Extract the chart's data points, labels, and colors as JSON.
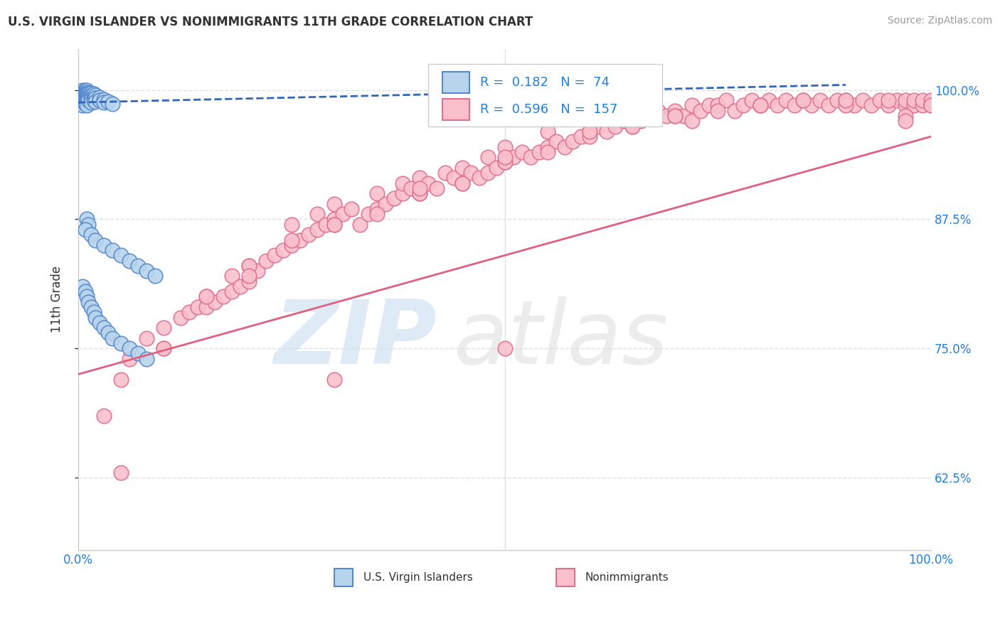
{
  "title": "U.S. VIRGIN ISLANDER VS NONIMMIGRANTS 11TH GRADE CORRELATION CHART",
  "source_text": "Source: ZipAtlas.com",
  "ylabel": "11th Grade",
  "xlim": [
    0.0,
    1.0
  ],
  "ylim": [
    0.555,
    1.04
  ],
  "yticks": [
    0.625,
    0.75,
    0.875,
    1.0
  ],
  "ytick_labels": [
    "62.5%",
    "75.0%",
    "87.5%",
    "100.0%"
  ],
  "xticks": [
    0.0,
    0.25,
    0.5,
    0.75,
    1.0
  ],
  "xtick_labels": [
    "0.0%",
    "",
    "",
    "",
    "100.0%"
  ],
  "blue_color": "#b8d4ec",
  "blue_edge_color": "#5588cc",
  "blue_line_color": "#3366bb",
  "pink_color": "#f9c0cc",
  "pink_edge_color": "#e07090",
  "pink_line_color": "#e06080",
  "legend_R1": "0.182",
  "legend_N1": "74",
  "legend_R2": "0.596",
  "legend_N2": "157",
  "title_color": "#333333",
  "axis_color": "#2080e0",
  "grid_color": "#e0e0e0",
  "blue_scatter_x": [
    0.005,
    0.005,
    0.005,
    0.005,
    0.005,
    0.005,
    0.005,
    0.005,
    0.008,
    0.008,
    0.008,
    0.008,
    0.008,
    0.008,
    0.008,
    0.01,
    0.01,
    0.01,
    0.01,
    0.01,
    0.01,
    0.01,
    0.01,
    0.012,
    0.012,
    0.012,
    0.012,
    0.012,
    0.015,
    0.015,
    0.015,
    0.015,
    0.015,
    0.018,
    0.018,
    0.018,
    0.02,
    0.02,
    0.02,
    0.025,
    0.025,
    0.03,
    0.03,
    0.035,
    0.04,
    0.01,
    0.012,
    0.008,
    0.015,
    0.02,
    0.03,
    0.04,
    0.05,
    0.06,
    0.07,
    0.08,
    0.09,
    0.005,
    0.008,
    0.01,
    0.012,
    0.015,
    0.018,
    0.02,
    0.025,
    0.03,
    0.035,
    0.04,
    0.05,
    0.06,
    0.07,
    0.08
  ],
  "blue_scatter_y": [
    1.0,
    0.998,
    0.996,
    0.994,
    0.992,
    0.99,
    0.988,
    0.985,
    1.0,
    0.998,
    0.996,
    0.994,
    0.992,
    0.99,
    0.987,
    1.0,
    0.998,
    0.996,
    0.994,
    0.992,
    0.99,
    0.988,
    0.985,
    0.998,
    0.996,
    0.994,
    0.992,
    0.99,
    0.997,
    0.995,
    0.993,
    0.991,
    0.988,
    0.996,
    0.993,
    0.99,
    0.995,
    0.992,
    0.989,
    0.993,
    0.99,
    0.991,
    0.988,
    0.989,
    0.987,
    0.875,
    0.87,
    0.865,
    0.86,
    0.855,
    0.85,
    0.845,
    0.84,
    0.835,
    0.83,
    0.825,
    0.82,
    0.81,
    0.805,
    0.8,
    0.795,
    0.79,
    0.785,
    0.78,
    0.775,
    0.77,
    0.765,
    0.76,
    0.755,
    0.75,
    0.745,
    0.74
  ],
  "pink_scatter_x": [
    0.03,
    0.05,
    0.06,
    0.08,
    0.1,
    0.1,
    0.12,
    0.13,
    0.14,
    0.15,
    0.15,
    0.16,
    0.17,
    0.18,
    0.18,
    0.19,
    0.2,
    0.2,
    0.21,
    0.22,
    0.23,
    0.24,
    0.25,
    0.25,
    0.26,
    0.27,
    0.28,
    0.28,
    0.29,
    0.3,
    0.3,
    0.31,
    0.32,
    0.33,
    0.34,
    0.35,
    0.35,
    0.36,
    0.37,
    0.38,
    0.38,
    0.39,
    0.4,
    0.4,
    0.41,
    0.42,
    0.43,
    0.44,
    0.45,
    0.45,
    0.46,
    0.47,
    0.48,
    0.48,
    0.49,
    0.5,
    0.5,
    0.51,
    0.52,
    0.53,
    0.54,
    0.55,
    0.55,
    0.56,
    0.57,
    0.58,
    0.59,
    0.6,
    0.6,
    0.61,
    0.62,
    0.63,
    0.64,
    0.65,
    0.65,
    0.66,
    0.67,
    0.68,
    0.69,
    0.7,
    0.71,
    0.72,
    0.72,
    0.73,
    0.74,
    0.75,
    0.76,
    0.77,
    0.78,
    0.79,
    0.8,
    0.81,
    0.82,
    0.83,
    0.84,
    0.85,
    0.86,
    0.87,
    0.88,
    0.89,
    0.9,
    0.91,
    0.92,
    0.93,
    0.94,
    0.95,
    0.96,
    0.97,
    0.97,
    0.98,
    0.98,
    0.99,
    0.99,
    1.0,
    1.0,
    1.0,
    0.97,
    0.97,
    0.1,
    0.15,
    0.2,
    0.25,
    0.3,
    0.35,
    0.4,
    0.45,
    0.5,
    0.55,
    0.6,
    0.65,
    0.7,
    0.75,
    0.8,
    0.85,
    0.9,
    0.95,
    0.2,
    0.3,
    0.4,
    0.5,
    0.6,
    0.7,
    0.8,
    0.9,
    0.05,
    0.5,
    0.3
  ],
  "pink_scatter_y": [
    0.685,
    0.72,
    0.74,
    0.76,
    0.77,
    0.75,
    0.78,
    0.785,
    0.79,
    0.8,
    0.79,
    0.795,
    0.8,
    0.805,
    0.82,
    0.81,
    0.815,
    0.83,
    0.825,
    0.835,
    0.84,
    0.845,
    0.85,
    0.87,
    0.855,
    0.86,
    0.865,
    0.88,
    0.87,
    0.875,
    0.89,
    0.88,
    0.885,
    0.87,
    0.88,
    0.885,
    0.9,
    0.89,
    0.895,
    0.9,
    0.91,
    0.905,
    0.9,
    0.915,
    0.91,
    0.905,
    0.92,
    0.915,
    0.91,
    0.925,
    0.92,
    0.915,
    0.92,
    0.935,
    0.925,
    0.93,
    0.945,
    0.935,
    0.94,
    0.935,
    0.94,
    0.945,
    0.96,
    0.95,
    0.945,
    0.95,
    0.955,
    0.96,
    0.975,
    0.965,
    0.96,
    0.965,
    0.97,
    0.965,
    0.975,
    0.97,
    0.975,
    0.98,
    0.975,
    0.98,
    0.975,
    0.985,
    0.97,
    0.98,
    0.985,
    0.985,
    0.99,
    0.98,
    0.985,
    0.99,
    0.985,
    0.99,
    0.985,
    0.99,
    0.985,
    0.99,
    0.985,
    0.99,
    0.985,
    0.99,
    0.99,
    0.985,
    0.99,
    0.985,
    0.99,
    0.985,
    0.99,
    0.985,
    0.99,
    0.985,
    0.99,
    0.985,
    0.99,
    0.985,
    0.99,
    0.985,
    0.975,
    0.97,
    0.75,
    0.8,
    0.83,
    0.855,
    0.87,
    0.88,
    0.9,
    0.91,
    0.93,
    0.94,
    0.955,
    0.965,
    0.975,
    0.98,
    0.985,
    0.99,
    0.985,
    0.99,
    0.82,
    0.87,
    0.905,
    0.935,
    0.96,
    0.975,
    0.985,
    0.99,
    0.63,
    0.75,
    0.72
  ],
  "blue_trend_x": [
    0.0,
    0.9
  ],
  "blue_trend_y_start": 0.988,
  "blue_trend_y_end": 1.005,
  "pink_trend_x": [
    0.0,
    1.0
  ],
  "pink_trend_y_start": 0.725,
  "pink_trend_y_end": 0.955
}
